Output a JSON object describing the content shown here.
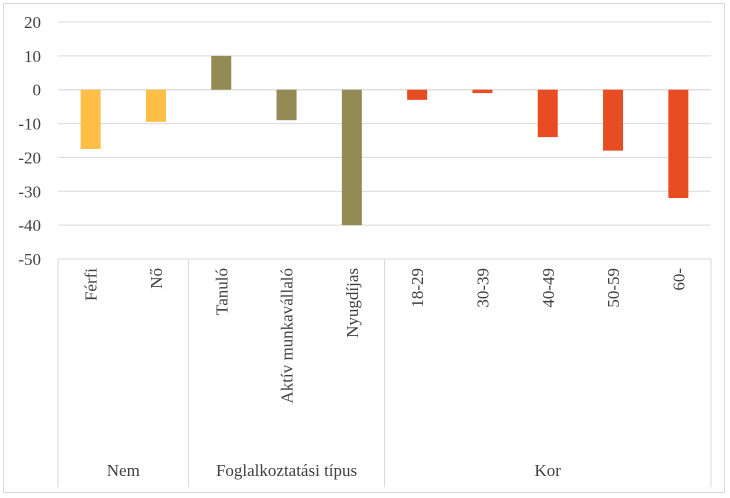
{
  "chart_data": {
    "type": "bar",
    "ylim": [
      -50,
      20
    ],
    "yticks": [
      20,
      10,
      0,
      -10,
      -20,
      -30,
      -40,
      -50
    ],
    "grid": true,
    "groups": [
      {
        "label": "Nem",
        "color": "#ffbf47",
        "categories": [
          "Férfi",
          "Nő"
        ],
        "values": [
          -17.5,
          -9.5
        ]
      },
      {
        "label": "Foglalkoztatási típus",
        "color": "#948a54",
        "categories": [
          "Tanuló",
          "Aktív munkavállaló",
          "Nyugdíjas"
        ],
        "values": [
          10,
          -9,
          -40
        ]
      },
      {
        "label": "Kor",
        "color": "#e84c22",
        "categories": [
          "18-29",
          "30-39",
          "40-49",
          "50-59",
          "60-"
        ],
        "values": [
          -3,
          -1,
          -14,
          -18,
          -32
        ]
      }
    ]
  }
}
